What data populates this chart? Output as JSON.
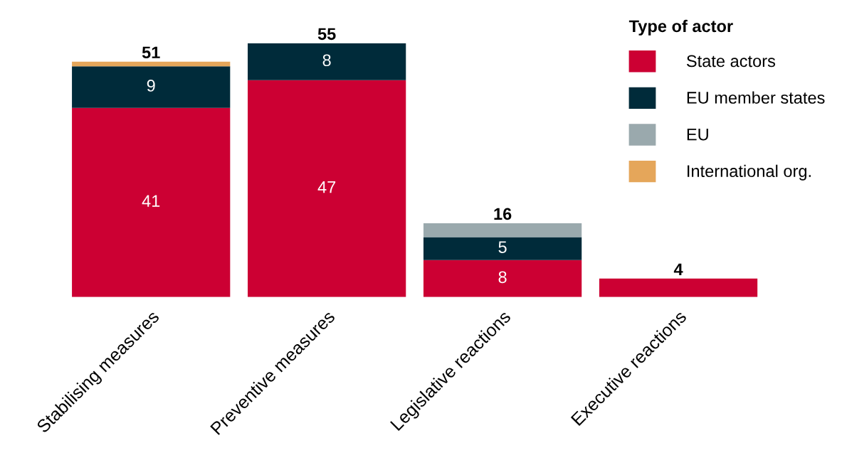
{
  "chart_data": {
    "type": "bar",
    "stacked": true,
    "legend_title": "Type of actor",
    "legend": "top right",
    "grid": false,
    "categories": [
      "Stabilising measures",
      "Preventive measures",
      "Legislative reactions",
      "Executive reactions"
    ],
    "series": [
      {
        "name": "State actors",
        "color": "#cc0033",
        "values": [
          41,
          47,
          8,
          4
        ],
        "value_labels": [
          "41",
          "47",
          "8",
          null
        ]
      },
      {
        "name": "EU member states",
        "color": "#002b3a",
        "values": [
          9,
          8,
          5,
          null
        ],
        "value_labels": [
          "9",
          "8",
          "5",
          null
        ]
      },
      {
        "name": "EU",
        "color": "#9aa9ad",
        "values": [
          null,
          null,
          3,
          null
        ],
        "value_labels": [
          null,
          null,
          null,
          null
        ]
      },
      {
        "name": "International org.",
        "color": "#e5a65a",
        "values": [
          1,
          null,
          null,
          null
        ],
        "value_labels": [
          null,
          null,
          null,
          null
        ]
      }
    ],
    "totals": [
      "51",
      "55",
      "16",
      "4"
    ]
  }
}
